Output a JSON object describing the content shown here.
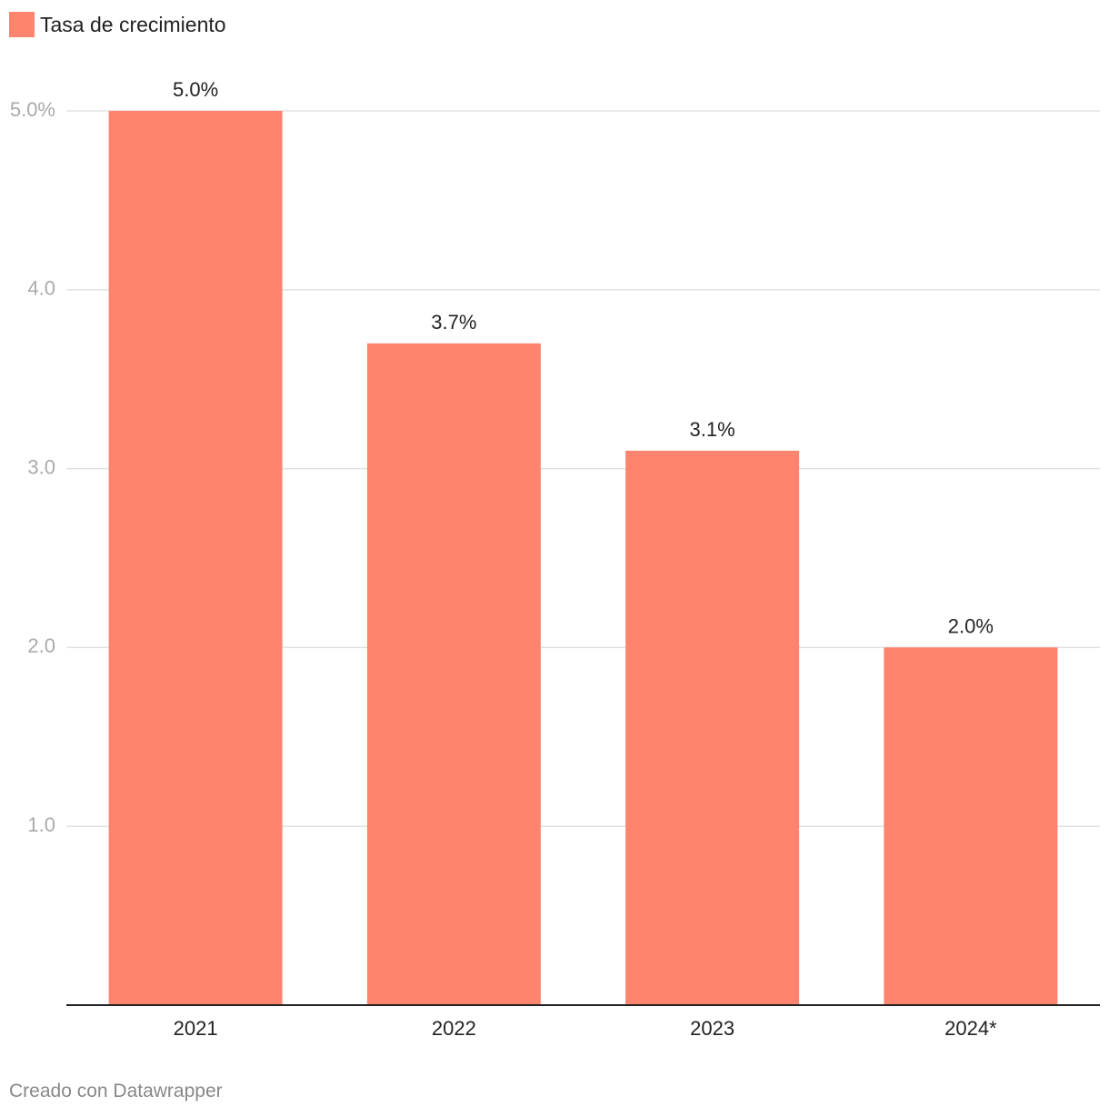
{
  "legend": {
    "label": "Tasa de crecimiento"
  },
  "credit": "Creado con Datawrapper",
  "colors": {
    "bar": "#ff846d",
    "grid": "#e2e2e2",
    "axis": "#222222",
    "tick_label": "#aaaaaa",
    "text": "#222222"
  },
  "chart_data": {
    "type": "bar",
    "categories": [
      "2021",
      "2022",
      "2023",
      "2024*"
    ],
    "series": [
      {
        "name": "Tasa de crecimiento",
        "values": [
          5.0,
          3.7,
          3.1,
          2.0
        ]
      }
    ],
    "data_labels": [
      "5.0%",
      "3.7%",
      "3.1%",
      "2.0%"
    ],
    "ylim": [
      0,
      5.0
    ],
    "yticks": [
      1.0,
      2.0,
      3.0,
      4.0,
      5.0
    ],
    "ytick_labels": [
      "1.0",
      "2.0",
      "3.0",
      "4.0",
      "5.0%"
    ],
    "grid": true,
    "legend_position": "top-left"
  }
}
